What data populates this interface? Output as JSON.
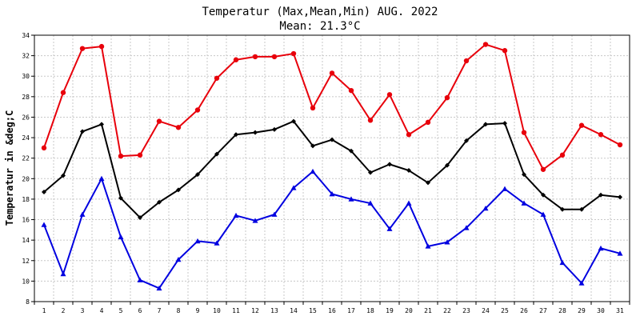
{
  "chart_data": {
    "type": "line",
    "title": "Temperatur (Max,Mean,Min) AUG. 2022",
    "subtitle": "Mean: 21.3°C",
    "xlabel": "",
    "ylabel": "Temperatur in &deg;C",
    "ylim": [
      8,
      34
    ],
    "yticks": [
      8,
      10,
      12,
      14,
      16,
      18,
      20,
      22,
      24,
      26,
      28,
      30,
      32,
      34
    ],
    "x": [
      1,
      2,
      3,
      4,
      5,
      6,
      7,
      8,
      9,
      10,
      11,
      12,
      13,
      14,
      15,
      16,
      17,
      18,
      19,
      20,
      21,
      22,
      23,
      24,
      25,
      26,
      27,
      28,
      29,
      30,
      31
    ],
    "grid": true,
    "series": [
      {
        "key": "max",
        "color": "#e8000b",
        "marker": "circle",
        "values": [
          23.0,
          28.4,
          32.7,
          32.9,
          22.2,
          22.3,
          25.6,
          25.0,
          26.7,
          29.8,
          31.6,
          31.9,
          31.9,
          32.2,
          26.9,
          30.3,
          28.6,
          25.7,
          28.2,
          24.3,
          25.5,
          27.9,
          31.5,
          33.1,
          32.5,
          24.5,
          20.9,
          22.3,
          25.2,
          24.3,
          23.3
        ]
      },
      {
        "key": "mean",
        "color": "#000000",
        "marker": "diamond",
        "values": [
          18.7,
          20.3,
          24.6,
          25.3,
          18.1,
          16.2,
          17.7,
          18.9,
          20.4,
          22.4,
          24.3,
          24.5,
          24.8,
          25.6,
          23.2,
          23.8,
          22.7,
          20.6,
          21.4,
          20.8,
          19.6,
          21.3,
          23.7,
          25.3,
          25.4,
          20.4,
          18.4,
          17.0,
          17.0,
          18.4,
          18.2
        ]
      },
      {
        "key": "min",
        "color": "#0000e0",
        "marker": "triangle",
        "values": [
          15.5,
          10.7,
          16.5,
          20.0,
          14.3,
          10.1,
          9.3,
          12.1,
          13.9,
          13.7,
          16.4,
          15.9,
          16.5,
          19.1,
          20.7,
          18.5,
          18.0,
          17.6,
          15.1,
          17.6,
          13.4,
          13.8,
          15.2,
          17.1,
          19.0,
          17.6,
          16.5,
          11.8,
          9.8,
          13.2,
          12.7
        ]
      }
    ]
  }
}
